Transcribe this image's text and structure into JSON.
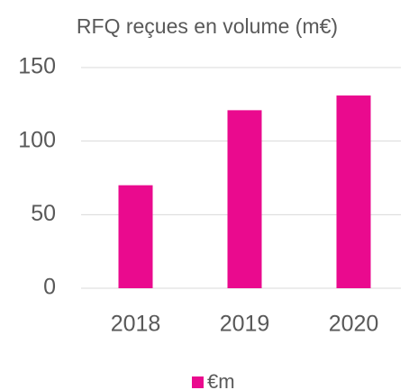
{
  "chart_data": {
    "type": "bar",
    "title": "RFQ reçues en volume  (m€)",
    "categories": [
      "2018",
      "2019",
      "2020"
    ],
    "series": [
      {
        "name": "€m",
        "color": "#ea0a8e",
        "values": [
          70,
          121,
          131
        ]
      }
    ],
    "ylim": [
      0,
      150
    ],
    "yticks": [
      0,
      50,
      100,
      150
    ],
    "grid": true,
    "legend": "bottom"
  }
}
